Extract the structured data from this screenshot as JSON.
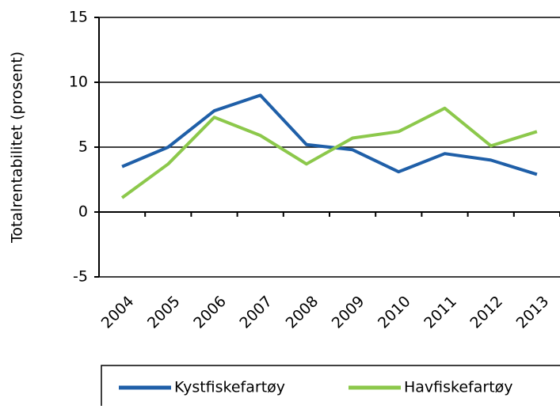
{
  "chart_data": {
    "type": "line",
    "y_label": "Totalrentabilitet (prosent)",
    "categories": [
      "2004",
      "2005",
      "2006",
      "2007",
      "2008",
      "2009",
      "2010",
      "2011",
      "2012",
      "2013"
    ],
    "series": [
      {
        "name": "Kystfiskefartøy",
        "color": "#1f5fa8",
        "values": [
          3.5,
          5.0,
          7.8,
          9.0,
          5.2,
          4.8,
          3.1,
          4.5,
          4.0,
          2.9
        ]
      },
      {
        "name": "Havfiskefartøy",
        "color": "#8cc84b",
        "values": [
          1.1,
          3.7,
          7.3,
          5.9,
          3.7,
          5.7,
          6.2,
          8.0,
          5.1,
          6.2
        ]
      }
    ],
    "ylim": [
      -5,
      15
    ],
    "yticks": [
      -5,
      0,
      5,
      10,
      15
    ],
    "grid": true,
    "legend": "bottom"
  }
}
